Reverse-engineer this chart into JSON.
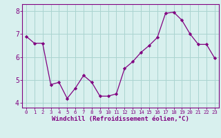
{
  "x": [
    0,
    1,
    2,
    3,
    4,
    5,
    6,
    7,
    8,
    9,
    10,
    11,
    12,
    13,
    14,
    15,
    16,
    17,
    18,
    19,
    20,
    21,
    22,
    23
  ],
  "y": [
    6.9,
    6.6,
    6.6,
    4.8,
    4.9,
    4.2,
    4.65,
    5.2,
    4.9,
    4.3,
    4.3,
    4.4,
    5.5,
    5.8,
    6.2,
    6.5,
    6.85,
    7.9,
    7.95,
    7.6,
    7.0,
    6.55,
    6.55,
    5.95
  ],
  "line_color": "#800080",
  "marker": "D",
  "marker_size": 2.2,
  "bg_color": "#d8f0ee",
  "grid_color": "#aad4d0",
  "axis_color": "#800080",
  "xlabel": "Windchill (Refroidissement éolien,°C)",
  "xlabel_fontsize": 6.5,
  "xlim": [
    -0.5,
    23.5
  ],
  "ylim": [
    3.8,
    8.3
  ],
  "yticks": [
    4,
    5,
    6,
    7,
    8
  ],
  "ytick_fontsize": 7,
  "xtick_fontsize": 5.2,
  "xticks": [
    0,
    1,
    2,
    3,
    4,
    5,
    6,
    7,
    8,
    9,
    10,
    11,
    12,
    13,
    14,
    15,
    16,
    17,
    18,
    19,
    20,
    21,
    22,
    23
  ]
}
